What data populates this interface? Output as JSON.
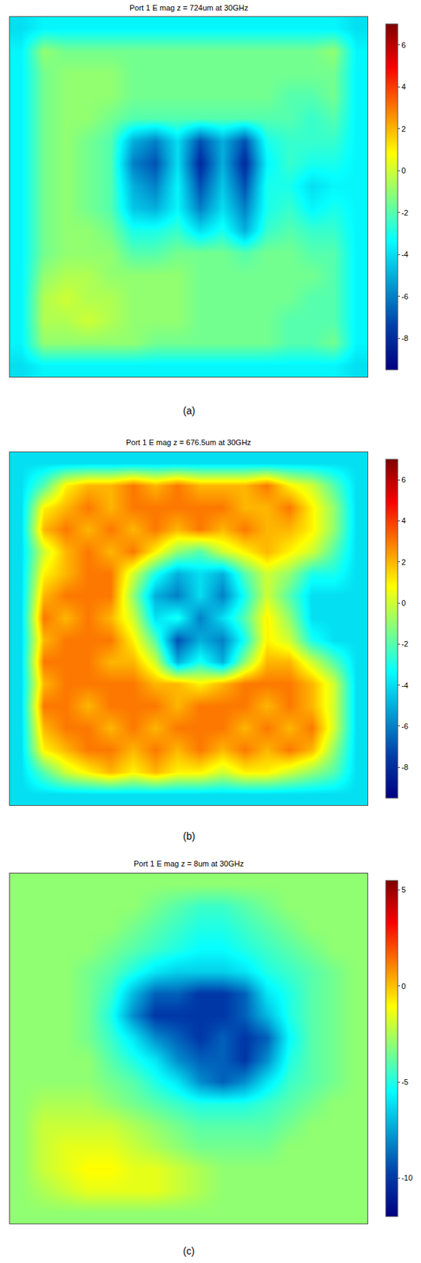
{
  "chart_data": [
    {
      "type": "heatmap",
      "title": "Port 1 E mag z = 724um at 30GHz",
      "label": "(a)",
      "color": "jet",
      "tick_labels": false,
      "zlim": [
        -9.5,
        7
      ],
      "zticks": [
        -8,
        -6,
        -4,
        -2,
        0,
        2,
        4,
        6
      ],
      "z": [
        [
          -4,
          -3.5,
          -3.5,
          -3.5,
          -3.5,
          -3.5,
          -3.5,
          -3.5,
          -3.5,
          -3.5,
          -3.5,
          -3.5,
          -3.5,
          -3.5,
          -3.5,
          -4
        ],
        [
          -3.5,
          -1,
          -1.5,
          -1.5,
          -1.5,
          -1.5,
          -1.5,
          -1.5,
          -1.5,
          -1.5,
          -1.5,
          -1.5,
          -1.5,
          -1.5,
          -1,
          -3.5
        ],
        [
          -3.5,
          -1.5,
          -1,
          -1,
          -1,
          -1.5,
          -1.5,
          -1.5,
          -1.5,
          -1.5,
          -1.5,
          -1.5,
          -1.5,
          -1.5,
          -1.5,
          -3.5
        ],
        [
          -3.5,
          -1.5,
          -1,
          -1,
          -1,
          -1.5,
          -1.5,
          -1.5,
          -1.5,
          -1.5,
          -1.5,
          -1.5,
          -2,
          -2,
          -1.5,
          -3.5
        ],
        [
          -3.5,
          -1.5,
          -1,
          -1,
          -1.5,
          -2,
          -2,
          -2,
          -2,
          -2,
          -2,
          -2,
          -2,
          -2.5,
          -2,
          -3.5
        ],
        [
          -3.5,
          -1.5,
          -1,
          -1.5,
          -2,
          -5,
          -6,
          -4,
          -7,
          -5,
          -7,
          -3,
          -2.5,
          -2.5,
          -2.5,
          -3.5
        ],
        [
          -3.5,
          -1.5,
          -1,
          -1.5,
          -2,
          -6,
          -7,
          -4,
          -8,
          -5,
          -8,
          -3.5,
          -2.5,
          -3,
          -3,
          -3.5
        ],
        [
          -3.5,
          -1.5,
          -1,
          -1.5,
          -2,
          -5,
          -6,
          -3.5,
          -7,
          -4.5,
          -7,
          -3,
          -3,
          -4,
          -3.5,
          -3.5
        ],
        [
          -3.5,
          -1.5,
          -1,
          -1.5,
          -2,
          -4.5,
          -5,
          -3.5,
          -6,
          -4,
          -6,
          -3,
          -2.5,
          -3.5,
          -3,
          -3.5
        ],
        [
          -3.5,
          -1.5,
          -1,
          -1,
          -1.5,
          -3,
          -3,
          -2.5,
          -4,
          -3,
          -5,
          -2.5,
          -2,
          -2.5,
          -2.5,
          -3.5
        ],
        [
          -3.5,
          -1.5,
          -1,
          -1,
          -1,
          -2,
          -2,
          -1.5,
          -1.5,
          -1.5,
          -2,
          -1.5,
          -1.5,
          -2,
          -2,
          -3.5
        ],
        [
          -3.5,
          -1,
          -0.5,
          -0.5,
          -1,
          -1,
          -1,
          -1,
          -1.5,
          -1.5,
          -1.5,
          -1.5,
          -1.5,
          -1.5,
          -2,
          -3.5
        ],
        [
          -3.5,
          -0.5,
          0,
          -0.5,
          -0.5,
          -1,
          -1,
          -1,
          -1.5,
          -1.5,
          -1.5,
          -1.5,
          -1.5,
          -2,
          -2,
          -3.5
        ],
        [
          -3.5,
          -0.5,
          -0.5,
          0,
          -0.5,
          -1,
          -1,
          -1,
          -1.5,
          -1.5,
          -1.5,
          -1.5,
          -2,
          -2,
          -2,
          -3.5
        ],
        [
          -3.5,
          -1,
          -1,
          -1,
          -1,
          -1,
          -1.5,
          -1.5,
          -1.5,
          -1.5,
          -1.5,
          -1.5,
          -2,
          -2,
          -1.5,
          -3.5
        ],
        [
          -4,
          -3.5,
          -3.5,
          -3.5,
          -3.5,
          -3.5,
          -3.5,
          -3.5,
          -3.5,
          -3.5,
          -3.5,
          -3.5,
          -3.5,
          -3.5,
          -3.5,
          -4
        ]
      ]
    },
    {
      "type": "heatmap",
      "title": "Port 1 E mag z = 676.5um at 30GHz",
      "label": "(b)",
      "color": "jet",
      "tick_labels": false,
      "zlim": [
        -9.5,
        7
      ],
      "zticks": [
        -8,
        -6,
        -4,
        -2,
        0,
        2,
        4,
        6
      ],
      "z": [
        [
          -4,
          -4,
          -4,
          -4,
          -4,
          -4,
          -4,
          -4,
          -4,
          -4,
          -4,
          -4,
          -4,
          -4,
          -4,
          -4
        ],
        [
          -4,
          -2,
          1,
          2,
          2,
          3,
          2,
          3,
          2,
          2,
          2,
          3,
          1,
          0,
          -2,
          -4
        ],
        [
          -4,
          1,
          2,
          3,
          2,
          3,
          3,
          3,
          3,
          3,
          2,
          2,
          3,
          1,
          -1,
          -4
        ],
        [
          -4,
          2,
          3,
          2,
          3,
          2,
          3,
          2,
          3,
          2,
          3,
          2,
          2,
          1,
          -1,
          -4
        ],
        [
          -4,
          0,
          2,
          3,
          2,
          3,
          1,
          -1,
          -2,
          0,
          1,
          2,
          1,
          0,
          -2,
          -4
        ],
        [
          -4,
          1,
          2,
          3,
          3,
          0,
          -3,
          -5,
          -4,
          -5,
          -2,
          0,
          -1,
          -3,
          -3,
          -4
        ],
        [
          -4,
          2,
          3,
          3,
          3,
          -1,
          -5,
          -6,
          -4,
          -6,
          -3,
          0,
          -2,
          -4,
          -4,
          -4
        ],
        [
          -4,
          3,
          2,
          3,
          2,
          0,
          -4,
          -3,
          -6,
          -4,
          -2,
          1,
          -1,
          -4,
          -4,
          -4
        ],
        [
          -4,
          2,
          3,
          3,
          3,
          1,
          -2,
          -7,
          -5,
          -6,
          -3,
          1,
          0,
          -3,
          -4,
          -4
        ],
        [
          -4,
          3,
          3,
          3,
          2,
          2,
          0,
          -5,
          -3,
          -5,
          -1,
          2,
          2,
          0,
          -2,
          -4
        ],
        [
          -4,
          2,
          3,
          3,
          3,
          3,
          2,
          2,
          1,
          2,
          3,
          3,
          3,
          2,
          0,
          -4
        ],
        [
          -4,
          3,
          3,
          2,
          3,
          3,
          3,
          2,
          3,
          3,
          3,
          2,
          3,
          2,
          0,
          -4
        ],
        [
          -4,
          2,
          3,
          3,
          2,
          3,
          2,
          3,
          3,
          3,
          2,
          3,
          2,
          3,
          0,
          -4
        ],
        [
          -4,
          1,
          2,
          3,
          3,
          2,
          3,
          2,
          3,
          2,
          3,
          2,
          3,
          2,
          -1,
          -4
        ],
        [
          -4,
          -2,
          0,
          1,
          2,
          1,
          2,
          1,
          1,
          0,
          1,
          1,
          0,
          -1,
          -2,
          -4
        ],
        [
          -4,
          -4,
          -4,
          -4,
          -4,
          -4,
          -4,
          -4,
          -4,
          -4,
          -4,
          -4,
          -4,
          -4,
          -4,
          -4
        ]
      ]
    },
    {
      "type": "heatmap",
      "title": "Port 1 E mag z = 8um at 30GHz",
      "label": "(c)",
      "color": "jet",
      "tick_labels": false,
      "zlim": [
        -12,
        5.5
      ],
      "zticks": [
        -10,
        -5,
        0,
        5
      ],
      "z": [
        [
          -3,
          -3,
          -3,
          -3,
          -3,
          -3,
          -3,
          -3,
          -3,
          -3,
          -3,
          -3,
          -3,
          -3,
          -3,
          -3
        ],
        [
          -3,
          -3,
          -3,
          -3,
          -3,
          -3,
          -3.5,
          -4,
          -4.5,
          -4.5,
          -4,
          -3.5,
          -3,
          -3,
          -3,
          -3
        ],
        [
          -3,
          -3,
          -3,
          -3,
          -3,
          -3.5,
          -4,
          -4.5,
          -5,
          -5,
          -4.5,
          -4,
          -3.5,
          -3,
          -3,
          -3
        ],
        [
          -3,
          -3,
          -3,
          -3,
          -3.5,
          -4,
          -4.5,
          -5,
          -5.5,
          -5.5,
          -5,
          -4.5,
          -4,
          -3.5,
          -3,
          -3
        ],
        [
          -3,
          -3,
          -3,
          -3.5,
          -4,
          -5,
          -6,
          -6.5,
          -6.5,
          -6.5,
          -6,
          -5,
          -4.5,
          -4,
          -3.5,
          -3
        ],
        [
          -3,
          -3,
          -3,
          -3.5,
          -4.5,
          -7,
          -9,
          -9,
          -10,
          -10,
          -9,
          -6,
          -5,
          -4,
          -3.5,
          -3
        ],
        [
          -3,
          -3,
          -3,
          -3.5,
          -5,
          -8,
          -10,
          -10,
          -10,
          -10,
          -9,
          -7,
          -5,
          -4,
          -3.5,
          -3
        ],
        [
          -3,
          -3,
          -3,
          -3.5,
          -4.5,
          -6,
          -8,
          -9,
          -10,
          -9,
          -10,
          -9,
          -5.5,
          -4,
          -3.5,
          -3
        ],
        [
          -3,
          -3,
          -3,
          -3,
          -4,
          -5,
          -6,
          -8,
          -9,
          -9,
          -10,
          -8,
          -5,
          -4,
          -3.5,
          -3
        ],
        [
          -3,
          -3,
          -3,
          -3,
          -3.5,
          -4,
          -5,
          -6,
          -8,
          -9,
          -8,
          -6,
          -4.5,
          -4,
          -3.5,
          -3
        ],
        [
          -3,
          -2.5,
          -2.5,
          -2.5,
          -3,
          -3.5,
          -4,
          -4.5,
          -5,
          -5,
          -5,
          -4.5,
          -4,
          -3.5,
          -3,
          -3
        ],
        [
          -3,
          -2,
          -2,
          -2,
          -2,
          -2.5,
          -3,
          -3.5,
          -4,
          -4,
          -4,
          -4,
          -3.5,
          -3,
          -3,
          -3
        ],
        [
          -3,
          -2,
          -1.5,
          -1.5,
          -1.5,
          -2,
          -2.5,
          -3,
          -3.5,
          -3.5,
          -3.5,
          -3.5,
          -3,
          -3,
          -3,
          -3
        ],
        [
          -3,
          -2,
          -1.5,
          -1,
          -1,
          -1.5,
          -1.5,
          -2,
          -2.5,
          -3,
          -3,
          -3,
          -3,
          -3,
          -3,
          -3
        ],
        [
          -3,
          -2.5,
          -2,
          -1.5,
          -1.5,
          -1.5,
          -1.5,
          -2,
          -2.5,
          -3,
          -3,
          -3,
          -3,
          -3,
          -3,
          -3
        ],
        [
          -3,
          -3,
          -3,
          -3,
          -3,
          -3,
          -3,
          -3,
          -3,
          -3,
          -3,
          -3,
          -3,
          -3,
          -3,
          -3
        ]
      ]
    }
  ]
}
